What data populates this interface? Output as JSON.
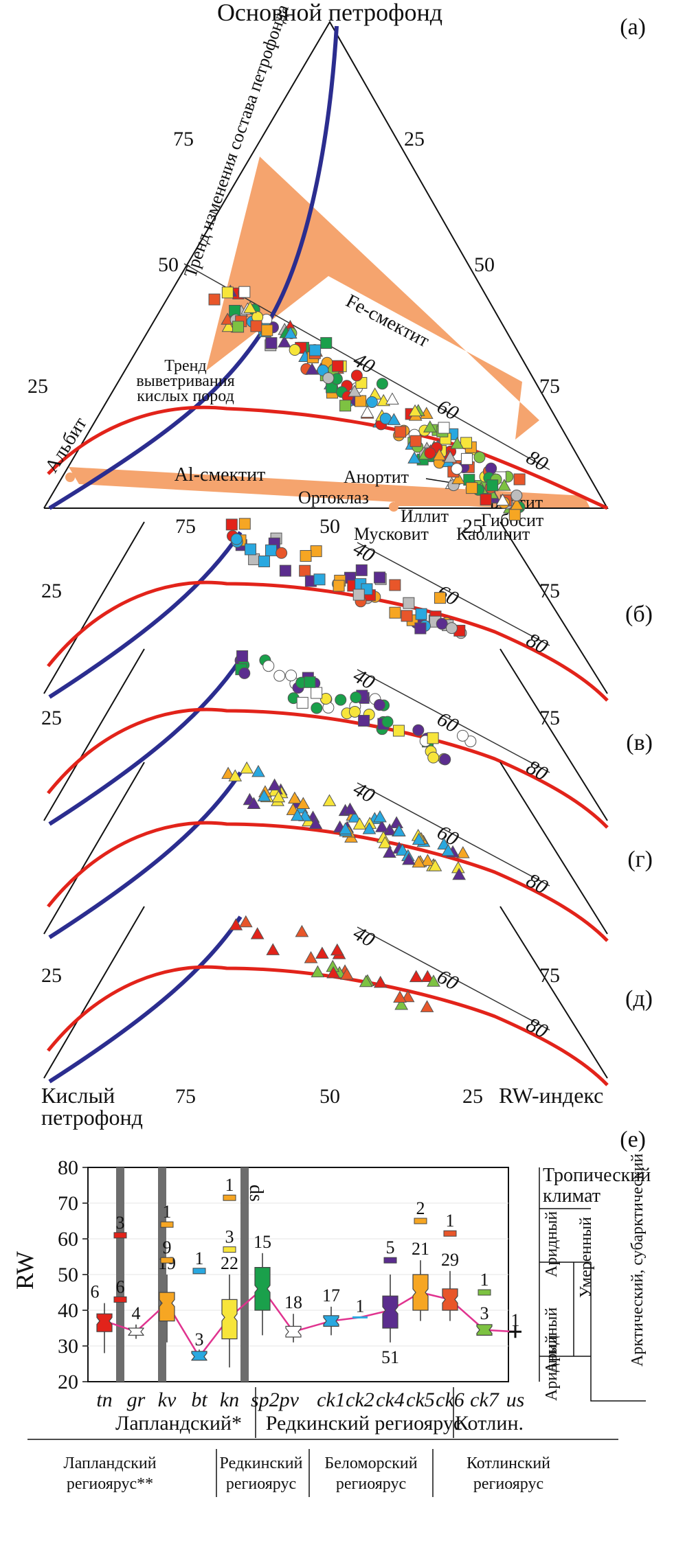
{
  "colors": {
    "weathering_trend": "#e2231a",
    "petrofund_trend": "#2b2d8f",
    "field_fill": "#f5a46e",
    "median_line": "#e0338f",
    "grey_band": "#6d6d6d",
    "whisker": "#333333"
  },
  "chart_data": [
    {
      "id": "a",
      "type": "ternary-scatter",
      "panel_label": "(а)",
      "apex_top": "Основной петрофонд",
      "apex_left": "Кислый петрофонд",
      "right_axis": "RW-индекс",
      "left_edge_ticks": [
        "25",
        "50",
        "75"
      ],
      "right_edge_ticks": [
        "25",
        "50",
        "75"
      ],
      "bottom_ticks": [
        "75",
        "50",
        "25"
      ],
      "rw_ticks": [
        "40",
        "60",
        "80"
      ],
      "trend_label": "Тренд изменения состава петрофонда",
      "weathering_label": [
        "Тренд",
        "выветривания",
        "кислых пород"
      ],
      "fields": [
        "Fe-смектит",
        "Al-смектит"
      ],
      "minerals": [
        "Альбит",
        "Анортит",
        "Ортоклаз",
        "Биотит",
        "Иллит",
        "Гиббсит",
        "Мусковит",
        "Каолинит"
      ]
    },
    {
      "id": "b",
      "type": "ternary-scatter",
      "panel_label": "(б)",
      "ticks": [
        "25",
        "40",
        "60",
        "80",
        "75"
      ]
    },
    {
      "id": "v",
      "type": "ternary-scatter",
      "panel_label": "(в)",
      "ticks": [
        "25",
        "40",
        "60",
        "80",
        "75"
      ]
    },
    {
      "id": "g",
      "type": "ternary-scatter",
      "panel_label": "(г)",
      "ticks": [
        "40",
        "60",
        "80"
      ]
    },
    {
      "id": "d",
      "type": "ternary-scatter",
      "panel_label": "(д)",
      "ticks": [
        "25",
        "40",
        "60",
        "80",
        "75"
      ],
      "bottom_ticks": [
        "75",
        "50",
        "25"
      ],
      "bottom_left_label": [
        "Кислый",
        "петрофонд"
      ],
      "bottom_right_label": "RW-индекс"
    },
    {
      "id": "e",
      "type": "box",
      "panel_label": "(е)",
      "ylabel": "RW",
      "ylim": [
        20,
        80
      ],
      "yticks": [
        20,
        30,
        40,
        50,
        60,
        70,
        80
      ],
      "categories": [
        {
          "name": "tn",
          "median": 37,
          "q1": 34,
          "q3": 39,
          "whisker_low": 28,
          "whisker_high": 42,
          "color": "#e2231a",
          "n": "6"
        },
        {
          "name": "gr",
          "median": 34,
          "q1": 33,
          "q3": 35,
          "whisker_low": 32,
          "whisker_high": 36,
          "color": "#ffffff",
          "n": "4"
        },
        {
          "name": "kv",
          "median": 42,
          "q1": 37,
          "q3": 45,
          "whisker_low": 31,
          "whisker_high": 50,
          "color": "#f6a623",
          "n": "19"
        },
        {
          "name": "bt",
          "median": 27,
          "q1": 26,
          "q3": 28.5,
          "whisker_low": 26,
          "whisker_high": 29,
          "color": "#29a8e0",
          "n": "3"
        },
        {
          "name": "kn",
          "median": 38,
          "q1": 32,
          "q3": 43,
          "whisker_low": 24,
          "whisker_high": 50,
          "color": "#f7e53a",
          "n": "22"
        },
        {
          "name": "sp2pv",
          "median": 46,
          "q1": 40,
          "q3": 52,
          "whisker_low": 33,
          "whisker_high": 56,
          "color": "#1aa04b",
          "n": "15"
        },
        {
          "name": "pv",
          "median": 34,
          "q1": 32.5,
          "q3": 35.5,
          "whisker_low": 31,
          "whisker_high": 39,
          "color": "#ffffff",
          "n": "18"
        },
        {
          "name": "ck1",
          "median": 37,
          "q1": 35.5,
          "q3": 38.5,
          "whisker_low": 33,
          "whisker_high": 41,
          "color": "#29a8e0",
          "n": "17"
        },
        {
          "name": "ck2",
          "median": 38,
          "q1": 38,
          "q3": 38,
          "whisker_low": 38,
          "whisker_high": 38,
          "color": "#29a8e0",
          "n": "1"
        },
        {
          "name": "ck4",
          "median": 40,
          "q1": 35,
          "q3": 44,
          "whisker_low": 31,
          "whisker_high": 50,
          "color": "#5b2d8e",
          "n": "51"
        },
        {
          "name": "ck5",
          "median": 45,
          "q1": 40,
          "q3": 50,
          "whisker_low": 37,
          "whisker_high": 54,
          "color": "#f6a623",
          "n": "21"
        },
        {
          "name": "ck6",
          "median": 43,
          "q1": 40,
          "q3": 46,
          "whisker_low": 37,
          "whisker_high": 51,
          "color": "#e8562a",
          "n": "29"
        },
        {
          "name": "ck7",
          "median": 34.5,
          "q1": 33,
          "q3": 36,
          "whisker_low": 33,
          "whisker_high": 36,
          "color": "#7dc242",
          "n": "3"
        },
        {
          "name": "us",
          "median": 34,
          "q1": 34,
          "q3": 34,
          "whisker_low": 34,
          "whisker_high": 34,
          "color": "#111111",
          "n": "1"
        }
      ],
      "extra_labels": [
        "3",
        "6",
        "1",
        "9",
        "1",
        "1",
        "3",
        "5",
        "2",
        "1",
        "1"
      ],
      "ds_label": "ds",
      "groups_upper": [
        "Лапландский*",
        "Редкинский региоярус",
        "Котлин."
      ],
      "groups_lower": [
        "Лапландский региоярус**",
        "Редкинский региоярус",
        "Беломорский региоярус",
        "Котлинский региоярус"
      ],
      "climate_right": [
        "Тропический климат",
        "Аридный",
        "Умеренный",
        "Аридный",
        "Арктический, субарктический",
        "Аридный"
      ]
    }
  ]
}
